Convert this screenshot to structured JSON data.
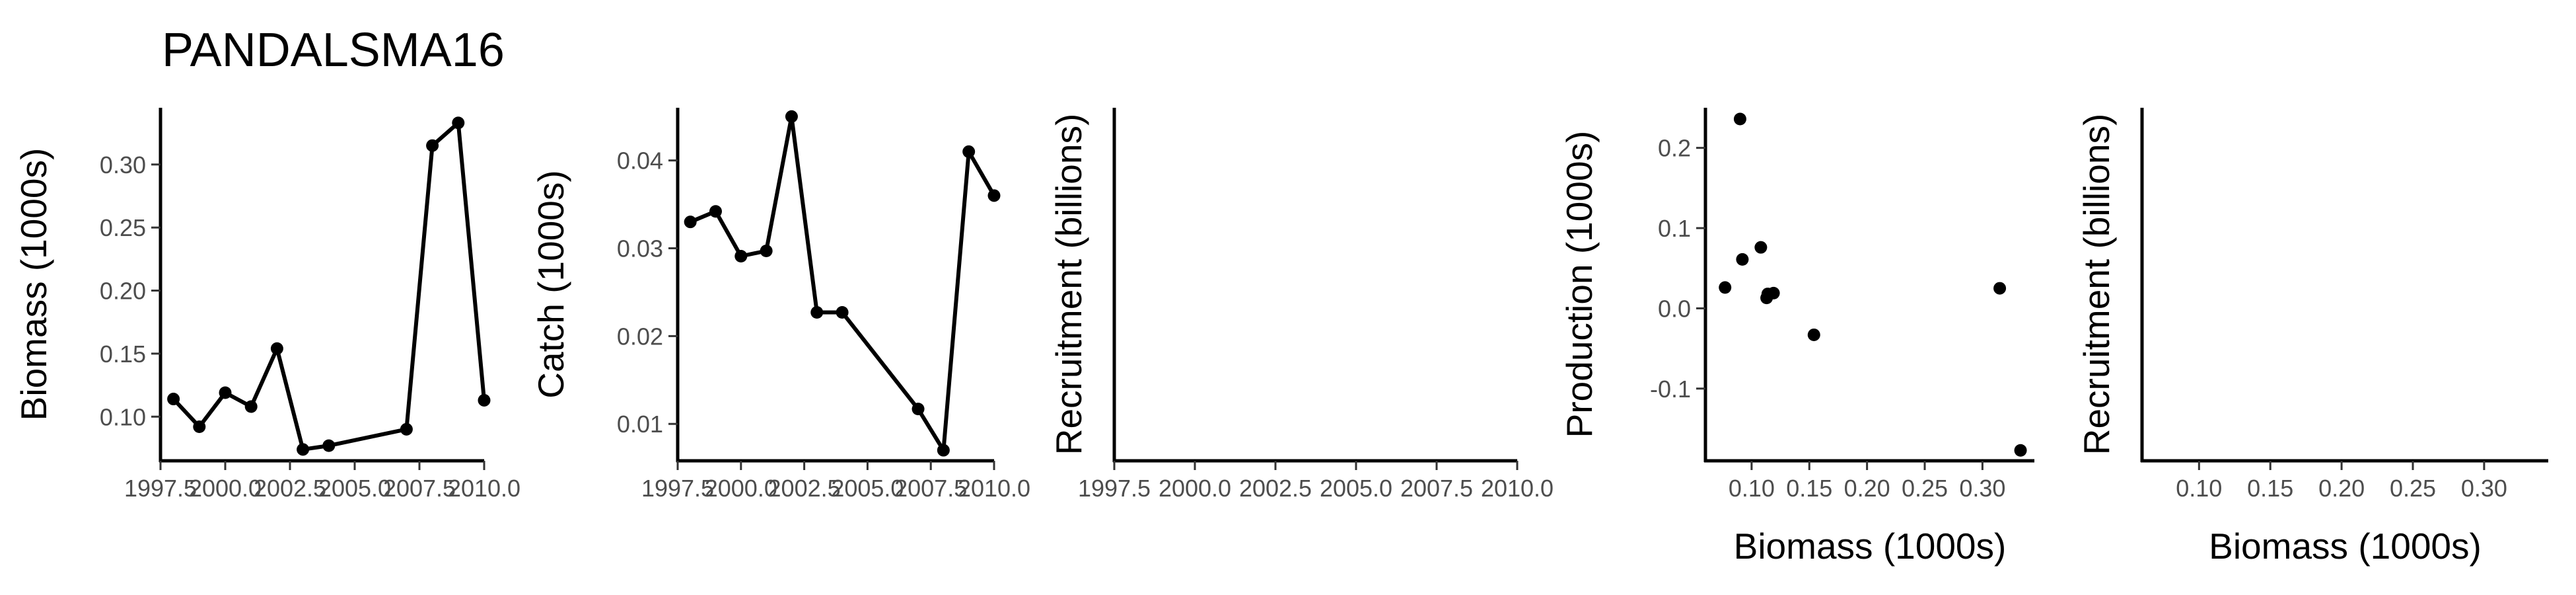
{
  "page_title": "PANDALSMA16",
  "chart_data": [
    {
      "type": "line",
      "xlabel": "",
      "ylabel": "Biomass (1000s)",
      "xlim": [
        1997.5,
        2010.0
      ],
      "ylim": [
        0.065,
        0.345
      ],
      "x_ticks": [
        1997.5,
        2000.0,
        2002.5,
        2005.0,
        2007.5,
        2010.0
      ],
      "x_tick_labels": [
        "1997.5",
        "2000.0",
        "2002.5",
        "2005.0",
        "2007.5",
        "2010.0"
      ],
      "y_ticks": [
        0.1,
        0.15,
        0.2,
        0.25,
        0.3
      ],
      "y_tick_labels": [
        "0.10",
        "0.15",
        "0.20",
        "0.25",
        "0.30"
      ],
      "series": [
        {
          "x": [
            1998,
            1999,
            2000,
            2001,
            2002,
            2003,
            2004,
            2007,
            2008,
            2009,
            2010
          ],
          "y": [
            0.114,
            0.092,
            0.119,
            0.108,
            0.154,
            0.074,
            0.077,
            0.09,
            0.315,
            0.333,
            0.113
          ]
        }
      ]
    },
    {
      "type": "line",
      "xlabel": "",
      "ylabel": "Catch (1000s)",
      "xlim": [
        1997.5,
        2010.0
      ],
      "ylim": [
        0.0058,
        0.046
      ],
      "x_ticks": [
        1997.5,
        2000.0,
        2002.5,
        2005.0,
        2007.5,
        2010.0
      ],
      "x_tick_labels": [
        "1997.5",
        "2000.0",
        "2002.5",
        "2005.0",
        "2007.5",
        "2010.0"
      ],
      "y_ticks": [
        0.01,
        0.02,
        0.03,
        0.04
      ],
      "y_tick_labels": [
        "0.01",
        "0.02",
        "0.03",
        "0.04"
      ],
      "series": [
        {
          "x": [
            1998,
            1999,
            2000,
            2001,
            2002,
            2003,
            2004,
            2007,
            2008,
            2009,
            2010
          ],
          "y": [
            0.033,
            0.0342,
            0.0291,
            0.0297,
            0.045,
            0.0227,
            0.0227,
            0.0117,
            0.007,
            0.041,
            0.036
          ]
        }
      ]
    },
    {
      "type": "line",
      "xlabel": "",
      "ylabel": "Recruitment (billions)",
      "xlim": [
        1997.5,
        2010.0
      ],
      "x_ticks": [
        1997.5,
        2000.0,
        2002.5,
        2005.0,
        2007.5,
        2010.0
      ],
      "x_tick_labels": [
        "1997.5",
        "2000.0",
        "2002.5",
        "2005.0",
        "2007.5",
        "2010.0"
      ],
      "series": []
    },
    {
      "type": "scatter",
      "xlabel": "Biomass (1000s)",
      "ylabel": "Production (1000s)",
      "xlim": [
        0.06,
        0.345
      ],
      "ylim": [
        -0.19,
        0.25
      ],
      "x_ticks": [
        0.1,
        0.15,
        0.2,
        0.25,
        0.3
      ],
      "x_tick_labels": [
        "0.10",
        "0.15",
        "0.20",
        "0.25",
        "0.30"
      ],
      "y_ticks": [
        -0.1,
        0.0,
        0.1,
        0.2
      ],
      "y_tick_labels": [
        "-0.1",
        "0.0",
        "0.1",
        "0.2"
      ],
      "series": [
        {
          "x": [
            0.077,
            0.09,
            0.092,
            0.108,
            0.113,
            0.114,
            0.119,
            0.154,
            0.315,
            0.333
          ],
          "y": [
            0.026,
            0.236,
            0.061,
            0.076,
            0.013,
            0.018,
            0.019,
            -0.033,
            0.025,
            -0.177
          ]
        }
      ]
    },
    {
      "type": "scatter",
      "xlabel": "Biomass (1000s)",
      "ylabel": "Recruitment (billions)",
      "xlim": [
        0.06,
        0.345
      ],
      "x_ticks": [
        0.1,
        0.15,
        0.2,
        0.25,
        0.3
      ],
      "x_tick_labels": [
        "0.10",
        "0.15",
        "0.20",
        "0.25",
        "0.30"
      ],
      "series": []
    }
  ]
}
